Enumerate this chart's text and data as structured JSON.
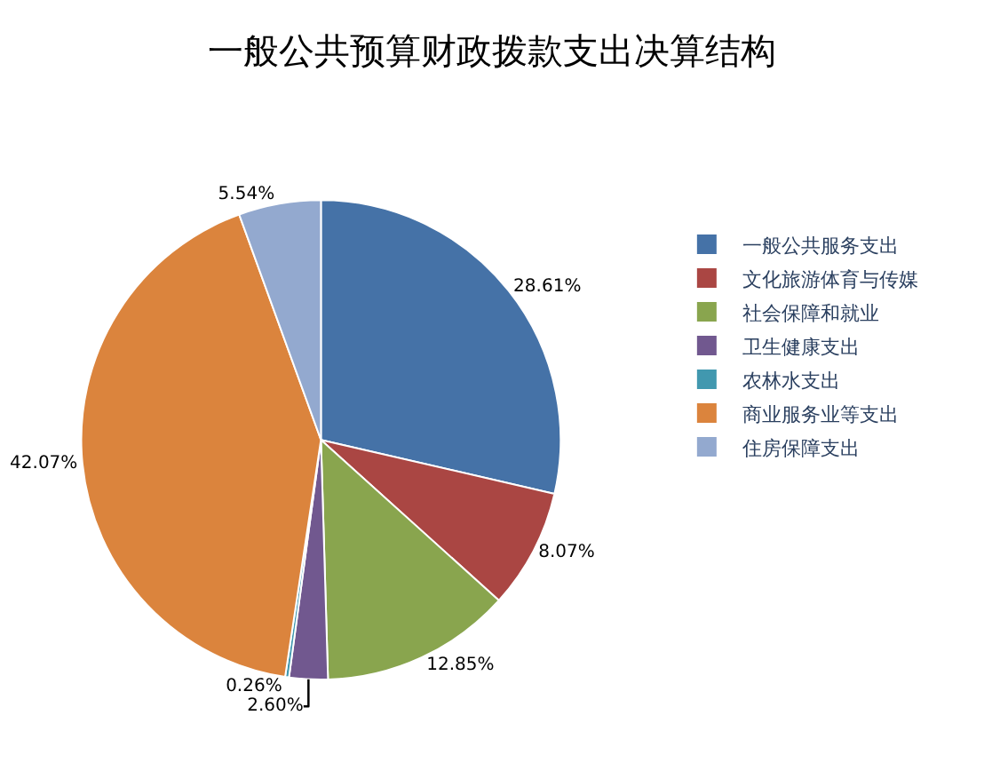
{
  "chart_data": {
    "type": "pie",
    "title": "一般公共预算财政拨款支出决算结构",
    "categories": [
      "一般公共服务支出",
      "文化旅游体育与传媒",
      "社会保障和就业",
      "卫生健康支出",
      "农林水支出",
      "商业服务业等支出",
      "住房保障支出"
    ],
    "values": [
      28.61,
      8.07,
      12.85,
      2.6,
      0.26,
      42.07,
      5.54
    ],
    "colors": [
      "#4572a7",
      "#aa4643",
      "#89a54e",
      "#71588f",
      "#4198af",
      "#db843d",
      "#93a9cf"
    ],
    "value_labels": [
      "28.61%",
      "8.07%",
      "12.85%",
      "2.60%",
      "0.26%",
      "42.07%",
      "5.54%"
    ],
    "legend": "right"
  }
}
